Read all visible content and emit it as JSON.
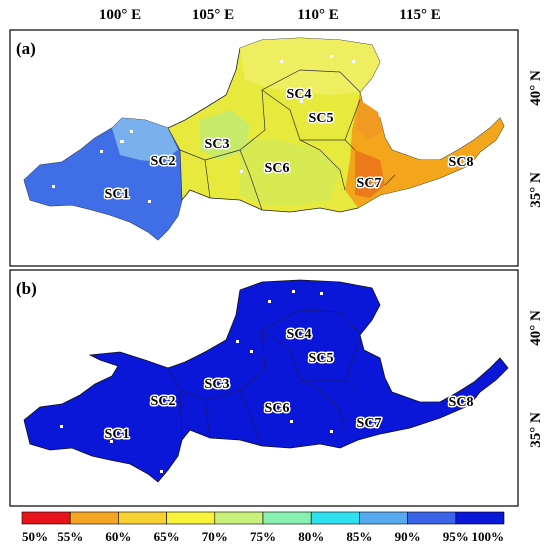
{
  "axes": {
    "lon_ticks": [
      "100° E",
      "105° E",
      "110° E",
      "115° E"
    ],
    "lat_ticks": [
      "40° N",
      "35° N"
    ]
  },
  "panels": [
    {
      "label": "(a)",
      "fill_shades": [
        "#3a66e8",
        "#6fa4f0",
        "#f2f26a",
        "#e5ea3c",
        "#f4a91a",
        "#ec7d1b"
      ]
    },
    {
      "label": "(b)",
      "fill_shades": [
        "#0a16d8",
        "#0a16d8"
      ]
    }
  ],
  "regions": [
    "SC1",
    "SC2",
    "SC3",
    "SC4",
    "SC5",
    "SC6",
    "SC7",
    "SC8"
  ],
  "colorbar": {
    "labels": [
      "50%",
      "55%",
      "60%",
      "65%",
      "70%",
      "75%",
      "80%",
      "85%",
      "90%",
      "95%",
      "100%"
    ],
    "colors": [
      "#e8141c",
      "#f06a1c",
      "#f5a524",
      "#f7d032",
      "#f7f23a",
      "#c8f07a",
      "#88f0b0",
      "#2ee0f0",
      "#58aaf0",
      "#3c64e8",
      "#0a16d8"
    ]
  }
}
